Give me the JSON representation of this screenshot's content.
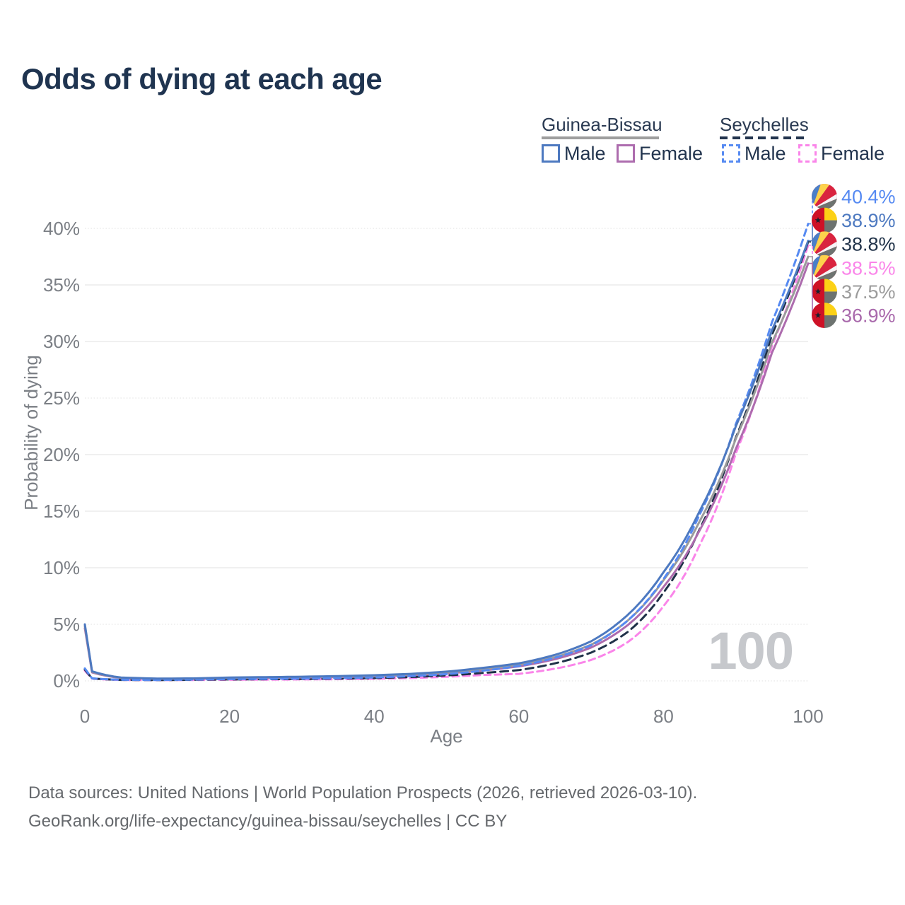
{
  "title": "Odds of dying at each age",
  "legend": {
    "groups": [
      {
        "label": "Guinea-Bissau",
        "underline_style": "solid",
        "underline_color": "#9e9e9e",
        "items": [
          {
            "label": "Male",
            "color": "#4d79c0",
            "dashed": false
          },
          {
            "label": "Female",
            "color": "#ad6cae",
            "dashed": false
          }
        ]
      },
      {
        "label": "Seychelles",
        "underline_style": "dashed",
        "underline_color": "#22344e",
        "items": [
          {
            "label": "Male",
            "color": "#568af2",
            "dashed": true
          },
          {
            "label": "Female",
            "color": "#fa85e9",
            "dashed": true
          }
        ]
      }
    ]
  },
  "chart_data": {
    "type": "line",
    "title": "Odds of dying at each age",
    "xlabel": "Age",
    "ylabel": "Probability of dying",
    "x_ticks": [
      0,
      20,
      40,
      60,
      80,
      100
    ],
    "y_ticks_pct": [
      0,
      5,
      10,
      15,
      20,
      25,
      30,
      35,
      40
    ],
    "xlim": [
      0,
      100
    ],
    "ylim_pct": [
      0,
      43
    ],
    "grid": "horizontal-only",
    "legend_position": "top-right",
    "annotation_age_indicator": "100",
    "ages": [
      0,
      1,
      5,
      10,
      15,
      20,
      25,
      30,
      35,
      40,
      45,
      50,
      55,
      60,
      65,
      70,
      75,
      80,
      85,
      90,
      95,
      100
    ],
    "series": [
      {
        "id": "sc-female",
        "name": "Seychelles Female",
        "country": "Seychelles",
        "sex": "Female",
        "color": "#fa85e9",
        "dashed": true,
        "values_pct": [
          0.9,
          0.2,
          0.08,
          0.06,
          0.08,
          0.1,
          0.11,
          0.13,
          0.15,
          0.18,
          0.25,
          0.36,
          0.52,
          0.62,
          1.08,
          1.85,
          3.4,
          6.6,
          12.0,
          20.1,
          29.6,
          38.5
        ]
      },
      {
        "id": "sc-total",
        "name": "Seychelles (both sexes)",
        "country": "Seychelles",
        "sex": "Both",
        "color": "#1f3148",
        "dashed": true,
        "values_pct": [
          1.0,
          0.21,
          0.09,
          0.07,
          0.1,
          0.13,
          0.15,
          0.17,
          0.2,
          0.25,
          0.34,
          0.48,
          0.7,
          0.95,
          1.55,
          2.5,
          4.3,
          7.8,
          13.4,
          21.5,
          30.6,
          38.8
        ]
      },
      {
        "id": "gw-female",
        "name": "Guinea-Bissau Female",
        "country": "Guinea-Bissau",
        "sex": "Female",
        "color": "#ad6cae",
        "dashed": false,
        "values_pct": [
          4.65,
          0.75,
          0.26,
          0.18,
          0.19,
          0.24,
          0.27,
          0.3,
          0.34,
          0.4,
          0.5,
          0.66,
          0.92,
          1.28,
          1.92,
          2.95,
          4.9,
          8.3,
          13.3,
          20.5,
          29.0,
          36.9
        ]
      },
      {
        "id": "gw-total",
        "name": "Guinea-Bissau (both sexes)",
        "country": "Guinea-Bissau",
        "sex": "Both",
        "color": "#9b9b9b",
        "dashed": false,
        "values_pct": [
          4.85,
          0.8,
          0.28,
          0.19,
          0.2,
          0.27,
          0.3,
          0.34,
          0.38,
          0.45,
          0.56,
          0.74,
          1.03,
          1.42,
          2.1,
          3.2,
          5.3,
          8.9,
          14.1,
          21.4,
          29.9,
          37.5
        ]
      },
      {
        "id": "sc-male",
        "name": "Seychelles Male",
        "country": "Seychelles",
        "sex": "Male",
        "color": "#568af2",
        "dashed": true,
        "values_pct": [
          1.1,
          0.22,
          0.1,
          0.08,
          0.12,
          0.16,
          0.18,
          0.2,
          0.24,
          0.3,
          0.42,
          0.6,
          0.9,
          1.32,
          2.05,
          3.15,
          5.3,
          9.0,
          14.7,
          22.7,
          31.7,
          40.4
        ]
      },
      {
        "id": "gw-male",
        "name": "Guinea-Bissau Male",
        "country": "Guinea-Bissau",
        "sex": "Male",
        "color": "#4d79c0",
        "dashed": false,
        "values_pct": [
          5.0,
          0.85,
          0.3,
          0.2,
          0.22,
          0.3,
          0.33,
          0.37,
          0.42,
          0.5,
          0.62,
          0.82,
          1.15,
          1.55,
          2.3,
          3.5,
          5.8,
          9.6,
          15.0,
          22.5,
          31.0,
          38.9
        ]
      }
    ],
    "end_labels": [
      {
        "text": "40.4%",
        "value_pct": 40.4,
        "series_id": "sc-male",
        "flag": "seychelles",
        "color": "#568af2"
      },
      {
        "text": "38.9%",
        "value_pct": 38.9,
        "series_id": "gw-male",
        "flag": "guinea-bissau",
        "color": "#4d79c0"
      },
      {
        "text": "38.8%",
        "value_pct": 38.8,
        "series_id": "sc-total",
        "flag": "seychelles",
        "color": "#1f3148"
      },
      {
        "text": "38.5%",
        "value_pct": 38.5,
        "series_id": "sc-female",
        "flag": "seychelles",
        "color": "#fa85e9"
      },
      {
        "text": "37.5%",
        "value_pct": 37.5,
        "series_id": "gw-total",
        "flag": "guinea-bissau",
        "color": "#9b9b9b"
      },
      {
        "text": "36.9%",
        "value_pct": 36.9,
        "series_id": "gw-female",
        "flag": "guinea-bissau",
        "color": "#a868ab"
      }
    ],
    "flag_colors": {
      "guinea_bissau": {
        "red": "#ce1126",
        "yellow": "#fcd116",
        "green_muted": "#6d7370",
        "star": "#16202e"
      },
      "seychelles": {
        "blue": "#4a7fc8",
        "yellow": "#fdd24c",
        "red": "#d9243f",
        "white": "#f5f5f7",
        "green_muted": "#6d7370"
      }
    }
  },
  "footer": {
    "line1": "Data sources: United Nations | World Population Prospects (2026, retrieved 2026-03-10).",
    "line2": "GeoRank.org/life-expectancy/guinea-bissau/seychelles | CC BY"
  }
}
